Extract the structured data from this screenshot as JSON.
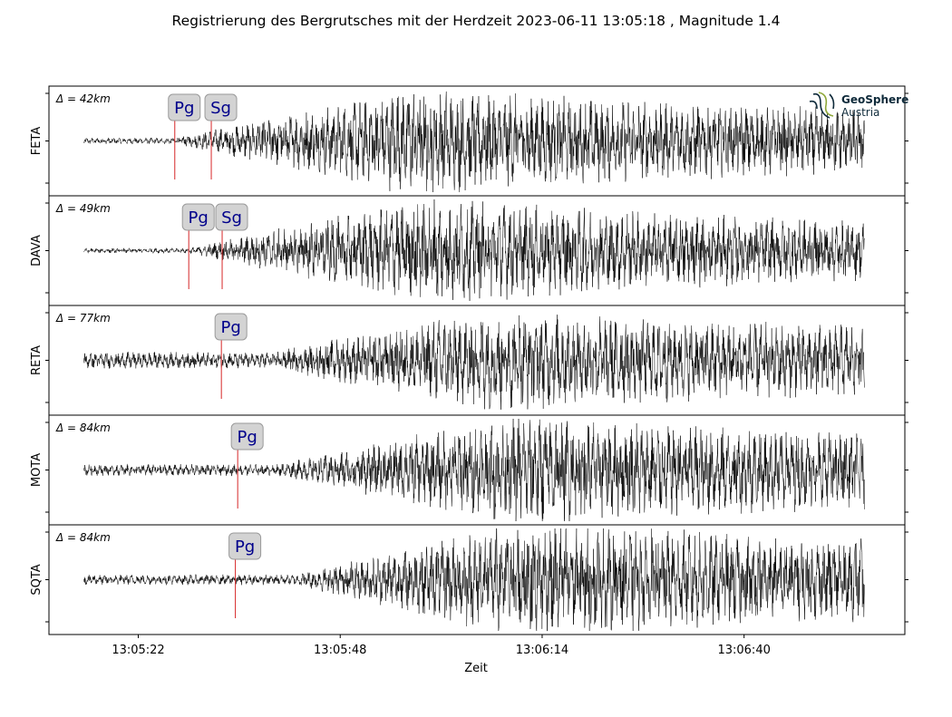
{
  "title": "Registrierung des Bergrutsches mit der Herdzeit 2023-06-11 13:05:18 , Magnitude 1.4",
  "logo": {
    "line1": "GeoSphere",
    "line2": "Austria",
    "color": "#0e2a3a",
    "accent": "#8fa83a"
  },
  "chart_data": {
    "type": "line",
    "title": "Registrierung des Bergrutsches mit der Herdzeit 2023-06-11 13:05:18 , Magnitude 1.4",
    "xlabel": "Zeit",
    "x_ticks": [
      "13:05:22",
      "13:05:48",
      "13:06:14",
      "13:06:40"
    ],
    "x_tick_seconds": [
      22,
      48,
      74,
      100
    ],
    "x_range_seconds": [
      10.5,
      120.7
    ],
    "trace_range_seconds": [
      15,
      115.5
    ],
    "pick_color": "#d62728",
    "trace_color": "#000000",
    "panels": [
      {
        "station": "FETA",
        "distance_label": "Δ = 42km",
        "picks": [
          {
            "phase": "Pg",
            "t": 26.7
          },
          {
            "phase": "Sg",
            "t": 31.4
          }
        ],
        "onset": 26.7,
        "noise": 0.05,
        "peak": 0.85,
        "peak_time": 58,
        "coda": 0.35
      },
      {
        "station": "DAVA",
        "distance_label": "Δ = 49km",
        "picks": [
          {
            "phase": "Pg",
            "t": 28.5
          },
          {
            "phase": "Sg",
            "t": 32.8
          }
        ],
        "onset": 28.5,
        "noise": 0.04,
        "peak": 0.85,
        "peak_time": 60,
        "coda": 0.3
      },
      {
        "station": "RETA",
        "distance_label": "Δ = 77km",
        "picks": [
          {
            "phase": "Pg",
            "t": 32.7
          }
        ],
        "onset": 39,
        "noise": 0.13,
        "peak": 0.8,
        "peak_time": 68,
        "coda": 0.3
      },
      {
        "station": "MOTA",
        "distance_label": "Δ = 84km",
        "picks": [
          {
            "phase": "Pg",
            "t": 34.8
          }
        ],
        "onset": 40,
        "noise": 0.09,
        "peak": 0.9,
        "peak_time": 72,
        "coda": 0.35
      },
      {
        "station": "SQTA",
        "distance_label": "Δ = 84km",
        "picks": [
          {
            "phase": "Pg",
            "t": 34.5
          }
        ],
        "onset": 42,
        "noise": 0.08,
        "peak": 0.95,
        "peak_time": 72,
        "coda": 0.4
      }
    ]
  }
}
